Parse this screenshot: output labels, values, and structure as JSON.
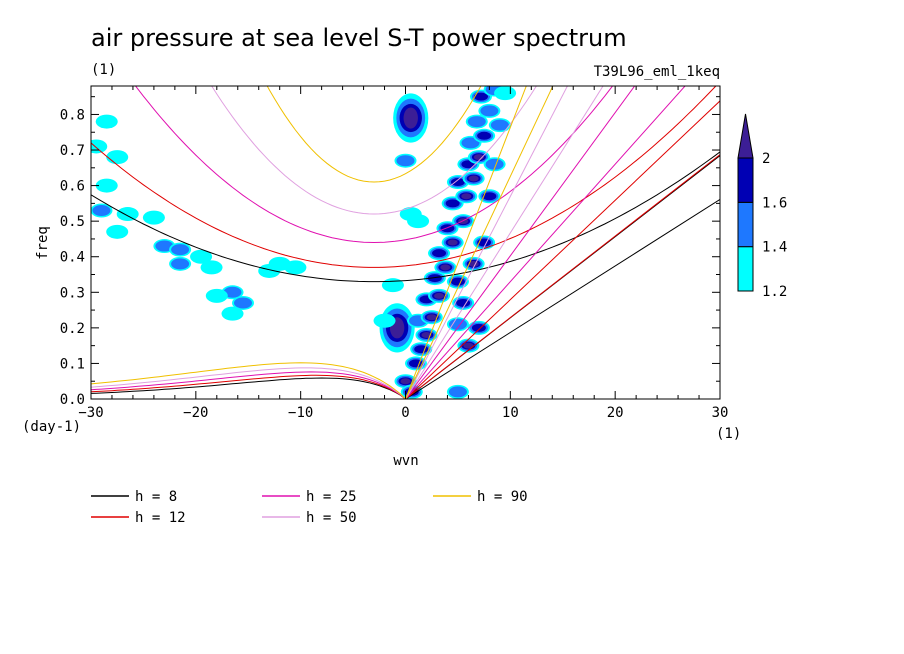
{
  "chart_data": {
    "type": "heatmap",
    "title": "air pressure at sea level S-T power spectrum",
    "units_left": "(1)",
    "subtitle_right": "T39L96_eml_1keq",
    "xlabel": "wvn",
    "ylabel": "freq",
    "x_units": "(1)",
    "y_units": "(day-1)",
    "xlim": [
      -30,
      30
    ],
    "ylim": [
      0,
      0.88
    ],
    "x_ticks": [
      -30,
      -20,
      -10,
      0,
      10,
      20,
      30
    ],
    "x_tick_labels": [
      "−30",
      "−20",
      "−10",
      "0",
      "10",
      "20",
      "30"
    ],
    "y_ticks": [
      0.0,
      0.1,
      0.2,
      0.3,
      0.4,
      0.5,
      0.6,
      0.7,
      0.8
    ],
    "y_tick_labels": [
      "0.0",
      "0.1",
      "0.2",
      "0.3",
      "0.4",
      "0.5",
      "0.6",
      "0.7",
      "0.8"
    ],
    "colorbar": {
      "levels": [
        1.2,
        1.4,
        1.6,
        2
      ],
      "labels": [
        "1.2",
        "1.4",
        "1.6",
        "2"
      ],
      "colors": [
        "#00ffff",
        "#1e78ff",
        "#0000b4",
        "#3c1e96"
      ]
    },
    "shading_blobs": [
      {
        "x": -28.5,
        "y": 0.78,
        "level": 1
      },
      {
        "x": -29.5,
        "y": 0.71,
        "level": 1
      },
      {
        "x": -27.5,
        "y": 0.68,
        "level": 1
      },
      {
        "x": -28.5,
        "y": 0.6,
        "level": 1
      },
      {
        "x": -29.0,
        "y": 0.53,
        "level": 2
      },
      {
        "x": -26.5,
        "y": 0.52,
        "level": 1
      },
      {
        "x": -24.0,
        "y": 0.51,
        "level": 1
      },
      {
        "x": -27.5,
        "y": 0.47,
        "level": 1
      },
      {
        "x": -23.0,
        "y": 0.43,
        "level": 2
      },
      {
        "x": -21.5,
        "y": 0.42,
        "level": 2
      },
      {
        "x": -19.5,
        "y": 0.4,
        "level": 1
      },
      {
        "x": -21.5,
        "y": 0.38,
        "level": 2
      },
      {
        "x": -18.5,
        "y": 0.37,
        "level": 1
      },
      {
        "x": -16.5,
        "y": 0.3,
        "level": 2
      },
      {
        "x": -18.0,
        "y": 0.29,
        "level": 1
      },
      {
        "x": -15.5,
        "y": 0.27,
        "level": 2
      },
      {
        "x": -16.5,
        "y": 0.24,
        "level": 1
      },
      {
        "x": -12.0,
        "y": 0.38,
        "level": 1
      },
      {
        "x": -10.5,
        "y": 0.37,
        "level": 1
      },
      {
        "x": -13.0,
        "y": 0.36,
        "level": 1
      },
      {
        "x": 0.5,
        "y": 0.79,
        "level": 4
      },
      {
        "x": 0.0,
        "y": 0.67,
        "level": 2
      },
      {
        "x": 0.5,
        "y": 0.52,
        "level": 1
      },
      {
        "x": 1.2,
        "y": 0.5,
        "level": 1
      },
      {
        "x": -0.8,
        "y": 0.2,
        "level": 4
      },
      {
        "x": -2.0,
        "y": 0.22,
        "level": 1
      },
      {
        "x": -1.2,
        "y": 0.32,
        "level": 1
      },
      {
        "x": 0.0,
        "y": 0.05,
        "level": 4
      },
      {
        "x": 0.6,
        "y": 0.02,
        "level": 3
      },
      {
        "x": 1.0,
        "y": 0.1,
        "level": 3
      },
      {
        "x": 1.5,
        "y": 0.14,
        "level": 3
      },
      {
        "x": 2.0,
        "y": 0.18,
        "level": 4
      },
      {
        "x": 1.2,
        "y": 0.22,
        "level": 2
      },
      {
        "x": 2.5,
        "y": 0.23,
        "level": 4
      },
      {
        "x": 2.0,
        "y": 0.28,
        "level": 3
      },
      {
        "x": 3.2,
        "y": 0.29,
        "level": 4
      },
      {
        "x": 2.8,
        "y": 0.34,
        "level": 3
      },
      {
        "x": 3.8,
        "y": 0.37,
        "level": 4
      },
      {
        "x": 3.2,
        "y": 0.41,
        "level": 3
      },
      {
        "x": 4.5,
        "y": 0.44,
        "level": 4
      },
      {
        "x": 4.0,
        "y": 0.48,
        "level": 3
      },
      {
        "x": 5.5,
        "y": 0.5,
        "level": 4
      },
      {
        "x": 4.5,
        "y": 0.55,
        "level": 3
      },
      {
        "x": 5.8,
        "y": 0.57,
        "level": 4
      },
      {
        "x": 5.0,
        "y": 0.61,
        "level": 3
      },
      {
        "x": 6.5,
        "y": 0.62,
        "level": 4
      },
      {
        "x": 6.0,
        "y": 0.66,
        "level": 3
      },
      {
        "x": 7.0,
        "y": 0.68,
        "level": 4
      },
      {
        "x": 6.2,
        "y": 0.72,
        "level": 2
      },
      {
        "x": 7.5,
        "y": 0.74,
        "level": 3
      },
      {
        "x": 6.8,
        "y": 0.78,
        "level": 2
      },
      {
        "x": 8.0,
        "y": 0.81,
        "level": 2
      },
      {
        "x": 7.2,
        "y": 0.85,
        "level": 3
      },
      {
        "x": 8.5,
        "y": 0.87,
        "level": 2
      },
      {
        "x": 5.0,
        "y": 0.33,
        "level": 3
      },
      {
        "x": 5.5,
        "y": 0.27,
        "level": 3
      },
      {
        "x": 5.0,
        "y": 0.21,
        "level": 2
      },
      {
        "x": 6.0,
        "y": 0.15,
        "level": 4
      },
      {
        "x": 7.0,
        "y": 0.2,
        "level": 3
      },
      {
        "x": 6.5,
        "y": 0.38,
        "level": 4
      },
      {
        "x": 7.5,
        "y": 0.44,
        "level": 3
      },
      {
        "x": 8.0,
        "y": 0.57,
        "level": 3
      },
      {
        "x": 8.5,
        "y": 0.66,
        "level": 2
      },
      {
        "x": 9.0,
        "y": 0.77,
        "level": 2
      },
      {
        "x": 5.0,
        "y": 0.02,
        "level": 2
      },
      {
        "x": 9.5,
        "y": 0.86,
        "level": 1
      }
    ],
    "legend": [
      {
        "label": "h =  8",
        "color": "#000000"
      },
      {
        "label": "h = 12",
        "color": "#e00000"
      },
      {
        "label": "h = 25",
        "color": "#e010b0"
      },
      {
        "label": "h = 50",
        "color": "#e0a0e0"
      },
      {
        "label": "h = 90",
        "color": "#f0c000"
      }
    ],
    "dispersion_curves": [
      {
        "h": 8,
        "color": "#000000",
        "kelvin_slope": 0.0187,
        "ig_min": 0.33,
        "ig_curv": 0.000335,
        "mrg_peak": 0.06,
        "mrg_scale": 8
      },
      {
        "h": 12,
        "color": "#e00000",
        "kelvin_slope": 0.0229,
        "ig_min": 0.37,
        "ig_curv": 0.00048,
        "mrg_peak": 0.068,
        "mrg_scale": 8.5
      },
      {
        "h": 25,
        "color": "#e010b0",
        "kelvin_slope": 0.033,
        "ig_min": 0.44,
        "ig_curv": 0.00085,
        "mrg_peak": 0.078,
        "mrg_scale": 9
      },
      {
        "h": 50,
        "color": "#e0a0e0",
        "kelvin_slope": 0.0467,
        "ig_min": 0.52,
        "ig_curv": 0.0015,
        "mrg_peak": 0.09,
        "mrg_scale": 9.5
      },
      {
        "h": 90,
        "color": "#f0c000",
        "kelvin_slope": 0.0626,
        "ig_min": 0.61,
        "ig_curv": 0.0026,
        "mrg_peak": 0.105,
        "mrg_scale": 10
      }
    ]
  }
}
